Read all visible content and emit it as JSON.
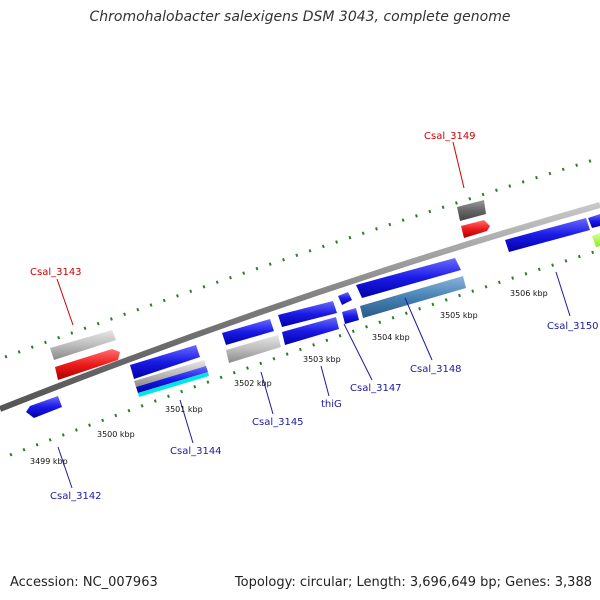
{
  "header": {
    "title": "Chromohalobacter salexigens DSM 3043, complete genome"
  },
  "footer": {
    "accession": "Accession: NC_007963",
    "summary": "Topology: circular; Length: 3,696,649 bp; Genes: 3,388"
  },
  "scale_labels": [
    "3499 kbp",
    "3500 kbp",
    "3501 kbp",
    "3502 kbp",
    "3503 kbp",
    "3504 kbp",
    "3505 kbp",
    "3506 kbp"
  ],
  "gene_labels": {
    "Csal_3143": "Csal_3143",
    "Csal_3149": "Csal_3149",
    "Csal_3142": "Csal_3142",
    "Csal_3144": "Csal_3144",
    "Csal_3145": "Csal_3145",
    "thiG": "thiG",
    "Csal_3147": "Csal_3147",
    "Csal_3148": "Csal_3148",
    "Csal_3150": "Csal_3150"
  },
  "colors": {
    "highlight_label": "#cc0000",
    "gene_label": "#1a1aa0",
    "cds_blue": "#1a1ae6",
    "rna_red": "#e61a1a",
    "gray_feature": "#b3b3b3",
    "dark_gray": "#666666",
    "steel_blue": "#4682b4",
    "cyan": "#00e6e6",
    "lime": "#99ff33",
    "tick_green": "#2e7d2e",
    "backbone": "#7a7a7a"
  }
}
